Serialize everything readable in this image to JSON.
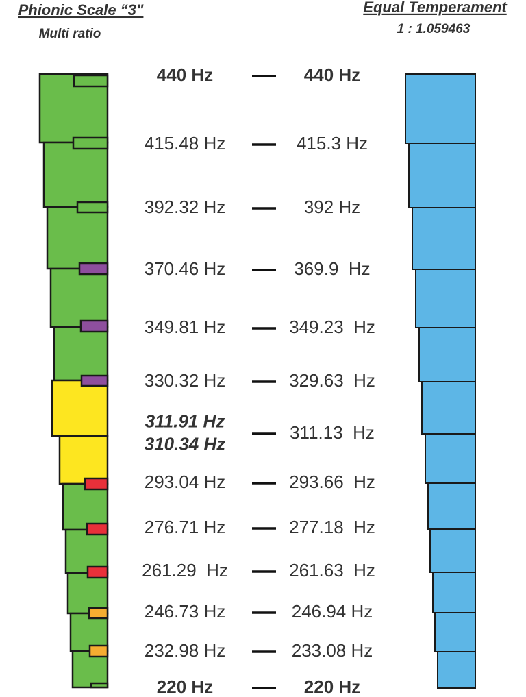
{
  "left_header": {
    "title": "Phionic Scale “3\"",
    "subtitle": "Multi ratio"
  },
  "right_header": {
    "title": "Equal Temperament",
    "subtitle": "1 : 1.059463"
  },
  "rows": [
    {
      "left": [
        "440 Hz"
      ],
      "right": "440 Hz"
    },
    {
      "left": [
        "415.48 Hz"
      ],
      "right": "415.3 Hz"
    },
    {
      "left": [
        "392.32 Hz"
      ],
      "right": "392 Hz"
    },
    {
      "left": [
        "370.46 Hz"
      ],
      "right": "369.9  Hz"
    },
    {
      "left": [
        "349.81 Hz"
      ],
      "right": "349.23  Hz"
    },
    {
      "left": [
        "330.32 Hz"
      ],
      "right": "329.63  Hz"
    },
    {
      "left": [
        "311.91 Hz",
        "310.34 Hz"
      ],
      "right": "311.13  Hz"
    },
    {
      "left": [
        "293.04 Hz"
      ],
      "right": "293.66  Hz"
    },
    {
      "left": [
        "276.71 Hz"
      ],
      "right": "277.18  Hz"
    },
    {
      "left": [
        "261.29  Hz"
      ],
      "right": "261.63  Hz"
    },
    {
      "left": [
        "246.73 Hz"
      ],
      "right": "246.94 Hz"
    },
    {
      "left": [
        "232.98 Hz"
      ],
      "right": "233.08 Hz"
    },
    {
      "left": [
        "220 Hz"
      ],
      "right": "220 Hz"
    }
  ]
}
